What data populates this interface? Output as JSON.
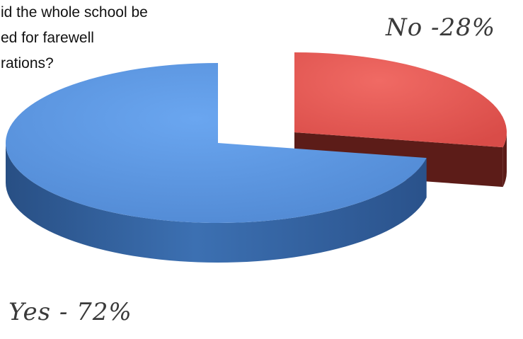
{
  "chart_data": {
    "type": "pie",
    "title_lines": [
      "id the whole school be",
      "ed for farewell",
      "rations?"
    ],
    "categories": [
      "No",
      "Yes"
    ],
    "values": [
      28,
      72
    ],
    "labels": [
      "No -28%",
      "Yes - 72%"
    ],
    "colors": {
      "No": {
        "top": "#e85b57",
        "side": "#5c1c18"
      },
      "Yes": {
        "top": "#5b97e4",
        "side": "#3a6aaa"
      }
    },
    "exploded": "No"
  }
}
